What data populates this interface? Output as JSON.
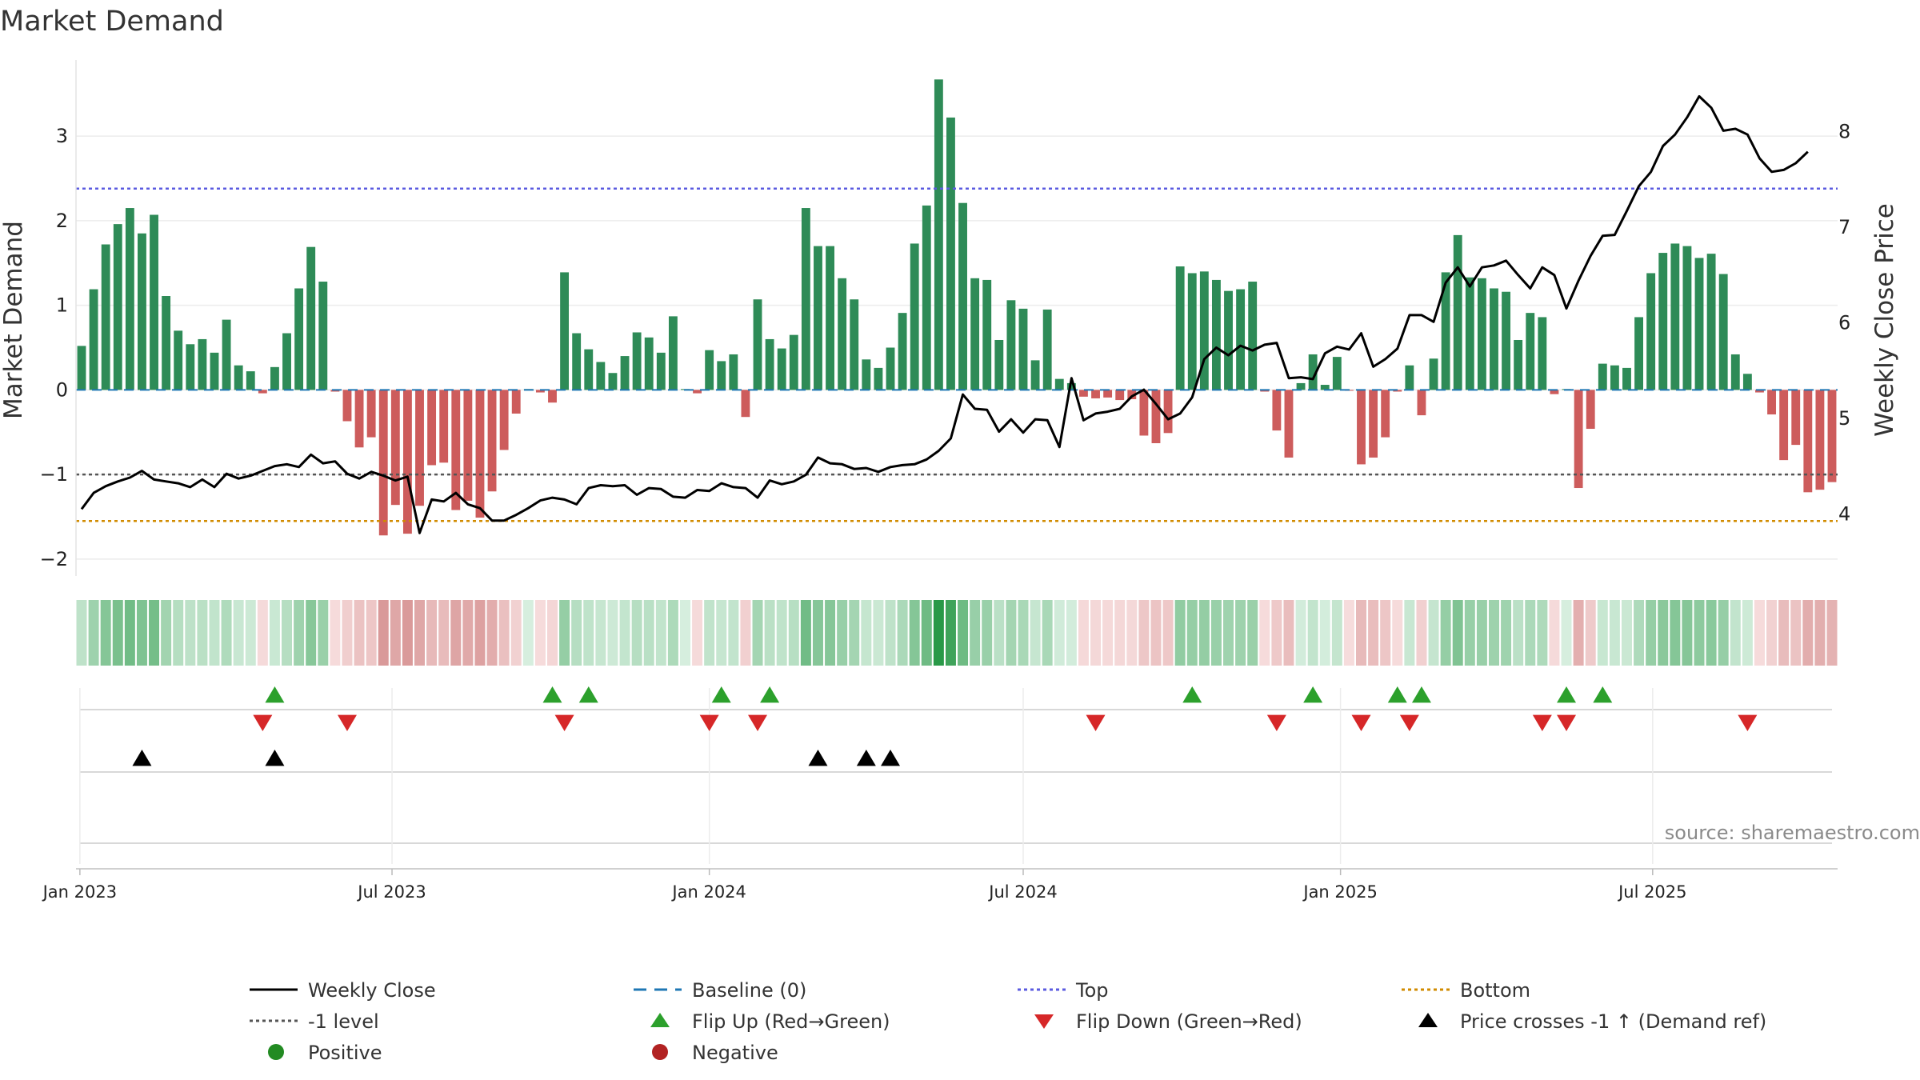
{
  "chart_data": {
    "type": "bar+line",
    "title": "Market Demand",
    "ylabel_left": "Market Demand",
    "ylabel_right": "Weekly Close Price",
    "source": "source: sharemaestro.com",
    "ylim_left": [
      -2.2,
      3.9
    ],
    "yticks_left": [
      3,
      2,
      1,
      0,
      -1,
      -2
    ],
    "ylim_right": [
      3.35,
      8.75
    ],
    "yticks_right": [
      8,
      7,
      6,
      5,
      4
    ],
    "reference_lines": {
      "top": 2.38,
      "bottom": -1.55,
      "minus_one": -1
    },
    "start_date": "2023-01-02",
    "x_tick_labels": [
      {
        "label": "Jan 2023",
        "date": "2023-01-01"
      },
      {
        "label": "Jul 2023",
        "date": "2023-07-01"
      },
      {
        "label": "Jan 2024",
        "date": "2024-01-01"
      },
      {
        "label": "Jul 2024",
        "date": "2024-07-01"
      },
      {
        "label": "Jan 2025",
        "date": "2025-01-01"
      },
      {
        "label": "Jul 2025",
        "date": "2025-07-01"
      }
    ],
    "demand": [
      0.52,
      1.19,
      1.72,
      1.96,
      2.15,
      1.85,
      2.07,
      1.11,
      0.7,
      0.54,
      0.6,
      0.44,
      0.83,
      0.29,
      0.22,
      -0.04,
      0.27,
      0.67,
      1.2,
      1.69,
      1.28,
      -0.02,
      -0.37,
      -0.68,
      -0.56,
      -1.72,
      -1.36,
      -1.7,
      -1.37,
      -0.89,
      -0.86,
      -1.42,
      -1.31,
      -1.51,
      -1.2,
      -0.71,
      -0.28,
      0.01,
      -0.03,
      -0.15,
      1.39,
      0.67,
      0.48,
      0.33,
      0.2,
      0.4,
      0.68,
      0.62,
      0.44,
      0.87,
      0.01,
      -0.04,
      0.47,
      0.34,
      0.42,
      -0.32,
      1.07,
      0.6,
      0.49,
      0.65,
      2.15,
      1.7,
      1.7,
      1.32,
      1.07,
      0.36,
      0.26,
      0.5,
      0.91,
      1.73,
      2.18,
      3.67,
      3.22,
      2.21,
      1.32,
      1.3,
      0.59,
      1.06,
      0.96,
      0.35,
      0.95,
      0.13,
      0.08,
      -0.08,
      -0.1,
      -0.09,
      -0.12,
      -0.11,
      -0.54,
      -0.63,
      -0.51,
      1.46,
      1.38,
      1.4,
      1.3,
      1.17,
      1.19,
      1.28,
      -0.02,
      -0.48,
      -0.8,
      0.08,
      0.42,
      0.06,
      0.39,
      -0.01,
      -0.88,
      -0.8,
      -0.56,
      -0.02,
      0.29,
      -0.3,
      0.37,
      1.39,
      1.83,
      1.33,
      1.32,
      1.2,
      1.16,
      0.59,
      0.91,
      0.86,
      -0.05,
      0.01,
      -1.16,
      -0.46,
      0.31,
      0.29,
      0.26,
      0.86,
      1.38,
      1.62,
      1.73,
      1.7,
      1.56,
      1.61,
      1.37,
      0.42,
      0.19,
      -0.03,
      -0.29,
      -0.83,
      -0.65,
      -1.21,
      -1.18,
      -1.09
    ],
    "weekly_close": [
      4.05,
      4.22,
      4.29,
      4.34,
      4.38,
      4.45,
      4.36,
      4.34,
      4.32,
      4.28,
      4.36,
      4.28,
      4.42,
      4.37,
      4.4,
      4.45,
      4.5,
      4.52,
      4.49,
      4.62,
      4.53,
      4.55,
      4.42,
      4.37,
      4.44,
      4.4,
      4.35,
      4.39,
      3.8,
      4.15,
      4.13,
      4.22,
      4.1,
      4.06,
      3.93,
      3.93,
      3.99,
      4.06,
      4.14,
      4.17,
      4.15,
      4.1,
      4.27,
      4.3,
      4.29,
      4.3,
      4.2,
      4.27,
      4.26,
      4.18,
      4.17,
      4.25,
      4.24,
      4.32,
      4.28,
      4.27,
      4.17,
      4.35,
      4.31,
      4.34,
      4.41,
      4.59,
      4.53,
      4.52,
      4.47,
      4.48,
      4.44,
      4.49,
      4.51,
      4.52,
      4.57,
      4.66,
      4.79,
      5.25,
      5.1,
      5.09,
      4.86,
      4.99,
      4.85,
      4.99,
      4.98,
      4.7,
      5.42,
      4.98,
      5.05,
      5.07,
      5.1,
      5.23,
      5.3,
      5.15,
      4.99,
      5.05,
      5.22,
      5.62,
      5.74,
      5.66,
      5.76,
      5.71,
      5.77,
      5.79,
      5.42,
      5.43,
      5.41,
      5.68,
      5.75,
      5.72,
      5.89,
      5.54,
      5.62,
      5.73,
      6.08,
      6.08,
      6.01,
      6.42,
      6.58,
      6.38,
      6.58,
      6.6,
      6.65,
      6.5,
      6.36,
      6.58,
      6.5,
      6.15,
      6.44,
      6.7,
      6.91,
      6.92,
      7.17,
      7.43,
      7.58,
      7.85,
      7.97,
      8.15,
      8.37,
      8.25,
      8.01,
      8.03,
      7.97,
      7.72,
      7.58,
      7.6,
      7.67,
      7.79
    ],
    "flip_up_weeks": [
      16,
      39,
      42,
      53,
      57,
      92,
      102,
      109,
      111,
      123,
      126
    ],
    "flip_down_weeks": [
      15,
      22,
      40,
      52,
      56,
      84,
      99,
      106,
      110,
      121,
      123,
      138
    ],
    "price_cross_up_weeks": [
      5,
      16,
      61,
      65,
      67
    ],
    "legend": [
      {
        "label": "Weekly Close",
        "symbol": "line-solid",
        "color": "#000000"
      },
      {
        "label": "Baseline (0)",
        "symbol": "line-dashed",
        "color": "#1f77b4"
      },
      {
        "label": "Top",
        "symbol": "line-dotted",
        "color": "#5b5be0"
      },
      {
        "label": "Bottom",
        "symbol": "line-dotted",
        "color": "#d18b00"
      },
      {
        "label": "-1 level",
        "symbol": "line-dotted",
        "color": "#555555"
      },
      {
        "label": "Flip Up (Red→Green)",
        "symbol": "triangle-up",
        "color": "#2ca02c"
      },
      {
        "label": "Flip Down (Green→Red)",
        "symbol": "triangle-down",
        "color": "#d62728"
      },
      {
        "label": "Price crosses -1 ↑ (Demand ref)",
        "symbol": "triangle-up",
        "color": "#000000"
      },
      {
        "label": "Positive",
        "symbol": "circle",
        "color": "#228b22"
      },
      {
        "label": "Negative",
        "symbol": "circle",
        "color": "#b22222"
      }
    ],
    "colors": {
      "positive_bar": "#2e8b57",
      "negative_bar": "#cd5c5c",
      "top_line": "#5b5be0",
      "bottom_line": "#d18b00",
      "minus_one_line": "#555555",
      "baseline": "#1f77b4",
      "flip_up": "#2ca02c",
      "flip_down": "#d62728",
      "price_cross": "#000000",
      "close_line": "#000000"
    }
  }
}
